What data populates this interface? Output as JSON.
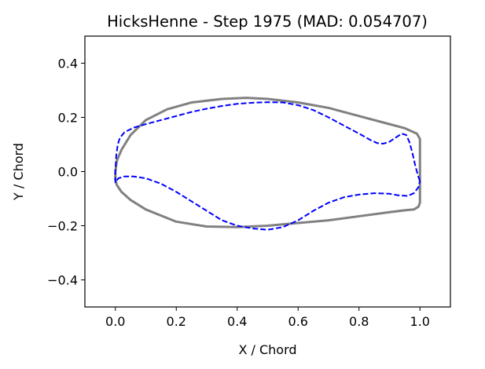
{
  "chart_data": {
    "type": "line",
    "title": "HicksHenne - Step 1975 (MAD: 0.054707)",
    "xlabel": "X / Chord",
    "ylabel": "Y / Chord",
    "xlim": [
      -0.1,
      1.1
    ],
    "ylim": [
      -0.5,
      0.5
    ],
    "xticks": [
      0.0,
      0.2,
      0.4,
      0.6,
      0.8,
      1.0
    ],
    "xtick_labels": [
      "0.0",
      "0.2",
      "0.4",
      "0.6",
      "0.8",
      "1.0"
    ],
    "yticks": [
      -0.4,
      -0.2,
      0.0,
      0.2,
      0.4
    ],
    "ytick_labels": [
      "−0.4",
      "−0.2",
      "0.0",
      "0.2",
      "0.4"
    ],
    "grid": false,
    "legend": "none",
    "series": [
      {
        "color": "#808080",
        "style": "solid",
        "x": [
          1.0,
          1.0,
          0.99,
          0.95,
          0.9,
          0.8,
          0.7,
          0.6,
          0.5,
          0.43,
          0.35,
          0.25,
          0.17,
          0.1,
          0.05,
          0.02,
          0.005,
          0.0,
          0.0,
          0.005,
          0.02,
          0.05,
          0.1,
          0.2,
          0.3,
          0.4,
          0.5,
          0.6,
          0.7,
          0.8,
          0.9,
          0.95,
          0.98,
          0.995,
          1.0,
          1.0
        ],
        "y": [
          0.11,
          0.12,
          0.14,
          0.16,
          0.175,
          0.205,
          0.235,
          0.255,
          0.268,
          0.272,
          0.268,
          0.255,
          0.23,
          0.19,
          0.135,
          0.08,
          0.04,
          0.0,
          -0.03,
          -0.05,
          -0.075,
          -0.105,
          -0.14,
          -0.185,
          -0.203,
          -0.205,
          -0.2,
          -0.19,
          -0.18,
          -0.165,
          -0.15,
          -0.143,
          -0.14,
          -0.13,
          -0.115,
          0.11
        ]
      },
      {
        "color": "#0000ff",
        "style": "dashed",
        "x": [
          1.0,
          0.995,
          0.985,
          0.975,
          0.965,
          0.955,
          0.94,
          0.92,
          0.9,
          0.88,
          0.86,
          0.84,
          0.8,
          0.75,
          0.7,
          0.65,
          0.6,
          0.55,
          0.5,
          0.45,
          0.4,
          0.35,
          0.3,
          0.25,
          0.2,
          0.15,
          0.1,
          0.06,
          0.03,
          0.015,
          0.008,
          0.003,
          0.0,
          0.0,
          0.01,
          0.03,
          0.06,
          0.1,
          0.15,
          0.2,
          0.25,
          0.3,
          0.35,
          0.4,
          0.45,
          0.5,
          0.55,
          0.6,
          0.65,
          0.7,
          0.75,
          0.8,
          0.85,
          0.9,
          0.93,
          0.96,
          0.98,
          0.995,
          1.0
        ],
        "y": [
          -0.035,
          -0.02,
          0.02,
          0.07,
          0.11,
          0.135,
          0.14,
          0.125,
          0.11,
          0.103,
          0.105,
          0.115,
          0.14,
          0.17,
          0.2,
          0.227,
          0.245,
          0.255,
          0.256,
          0.254,
          0.25,
          0.242,
          0.232,
          0.22,
          0.205,
          0.19,
          0.175,
          0.162,
          0.145,
          0.125,
          0.1,
          0.06,
          0.0,
          -0.04,
          -0.025,
          -0.018,
          -0.018,
          -0.025,
          -0.045,
          -0.075,
          -0.11,
          -0.145,
          -0.18,
          -0.2,
          -0.21,
          -0.215,
          -0.205,
          -0.18,
          -0.145,
          -0.115,
          -0.095,
          -0.085,
          -0.08,
          -0.082,
          -0.088,
          -0.09,
          -0.08,
          -0.058,
          -0.035
        ]
      }
    ]
  }
}
